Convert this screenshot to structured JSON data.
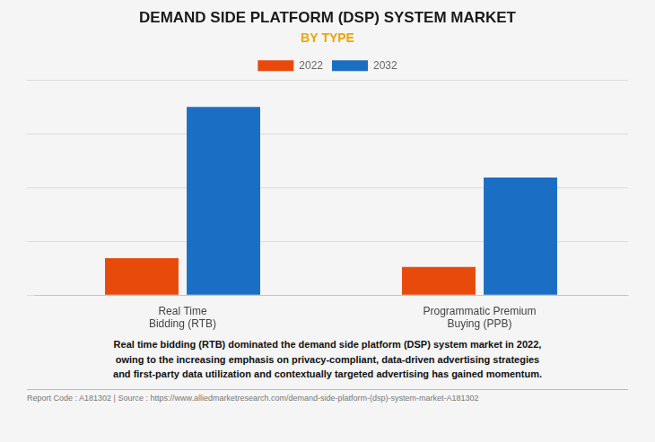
{
  "chart_data": {
    "type": "bar",
    "title": "DEMAND SIDE PLATFORM (DSP) SYSTEM MARKET",
    "subtitle": "BY TYPE",
    "categories": [
      "Real Time\nBidding (RTB)",
      "Programmatic Premium\nBuying (PPB)"
    ],
    "series": [
      {
        "name": "2022",
        "color": "#E84A0C",
        "values": [
          5.5,
          4.2
        ]
      },
      {
        "name": "2032",
        "color": "#1A6FC4",
        "values": [
          28.0,
          17.5
        ]
      }
    ],
    "ylim": [
      0,
      32
    ],
    "yticks": [
      0,
      8,
      16,
      24,
      32
    ],
    "grid": true,
    "legend": "top",
    "tick_labels": "x",
    "annotations": [
      "Real time bidding (RTB) dominated the demand side platform (DSP) system market in 2022,\nowing to the increasing emphasis on privacy-compliant, data-driven advertising strategies\nand first-party data utilization and contextually targeted advertising has gained momentum.",
      "Report Code : A181302  |  Source : https://www.alliedmarketresearch.com/demand-side-platform-(dsp)-system-market-A181302"
    ]
  }
}
